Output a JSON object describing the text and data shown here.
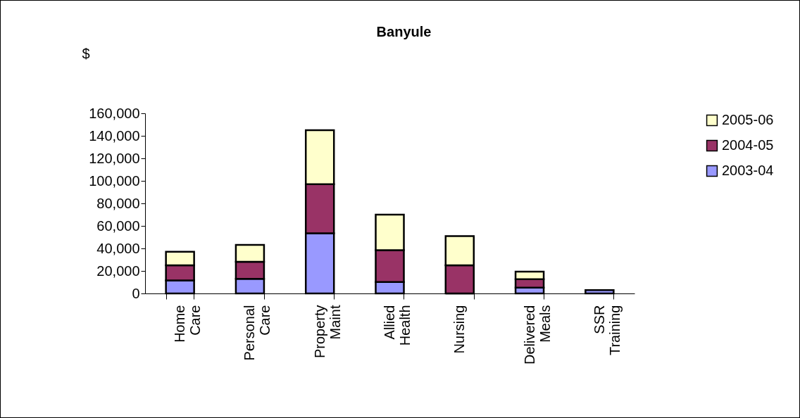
{
  "chart_data": {
    "type": "bar",
    "title": "Banyule",
    "ylabel": "$",
    "stacked": true,
    "legend": "right",
    "grid": false,
    "categories": [
      "Home Care",
      "Personal Care",
      "Property Maint",
      "Allied Health",
      "Nursing",
      "Delivered Meals",
      "SSR Training"
    ],
    "series": [
      {
        "name": "2003-04",
        "color": "#9999ff",
        "values": [
          11600,
          13000,
          53400,
          10100,
          0,
          5200,
          3000
        ]
      },
      {
        "name": "2004-05",
        "color": "#993366",
        "values": [
          13400,
          15200,
          43600,
          28400,
          25000,
          7500,
          null
        ]
      },
      {
        "name": "2005-06",
        "color": "#ffffcc",
        "values": [
          12000,
          14900,
          48000,
          31500,
          25900,
          6600,
          null
        ]
      }
    ],
    "ylim": [
      0,
      160000
    ],
    "yticks": [
      0,
      {
        "value": 20000,
        "label": "20,000"
      },
      {
        "value": 40000,
        "label": "40,000"
      },
      {
        "value": 60000,
        "label": "60,000"
      },
      {
        "value": 80000,
        "label": "80,000"
      },
      {
        "value": 100000,
        "label": "100,000"
      },
      {
        "value": 120000,
        "label": "120,000"
      },
      {
        "value": 140000,
        "label": "140,000"
      },
      {
        "value": 160000,
        "label": "160,000"
      }
    ]
  }
}
